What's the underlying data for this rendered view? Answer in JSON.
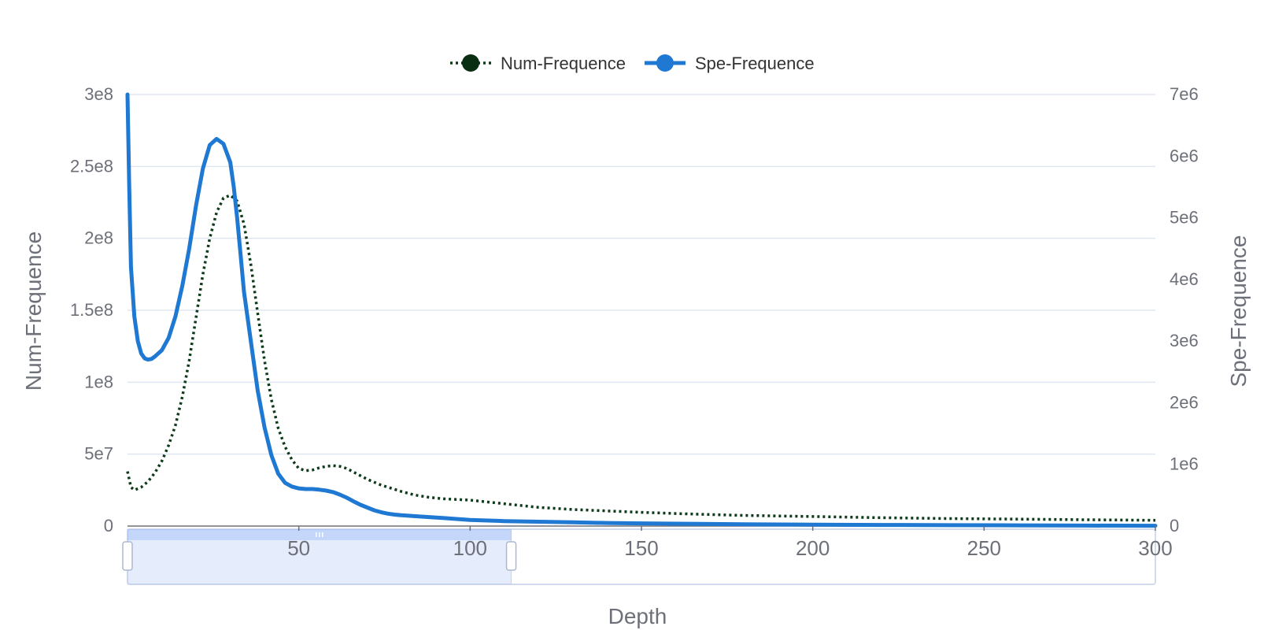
{
  "chart_data": {
    "type": "line",
    "xlabel": "Depth",
    "ylabel_left": "Num-Frequence",
    "ylabel_right": "Spe-Frequence",
    "xlim": [
      0,
      300
    ],
    "ylim_left": [
      0,
      300000000
    ],
    "ylim_right": [
      0,
      7000000
    ],
    "x_ticks": [
      "50",
      "100",
      "150",
      "200",
      "250",
      "300"
    ],
    "y_ticks_left": [
      "0",
      "5e7",
      "1e8",
      "1.5e8",
      "2e8",
      "2.5e8",
      "3e8"
    ],
    "y_ticks_right": [
      "0",
      "1e6",
      "2e6",
      "3e6",
      "4e6",
      "5e6",
      "6e6",
      "7e6"
    ],
    "legend_position": "top-center",
    "grid": true,
    "data_zoom": {
      "start_value": 0,
      "end_value": 112
    },
    "series": [
      {
        "name": "Num-Frequence",
        "axis": "left",
        "style": "dotted",
        "color": "#0d3b1a",
        "x": [
          0,
          1,
          2,
          4,
          6,
          8,
          10,
          12,
          14,
          16,
          18,
          20,
          22,
          24,
          26,
          28,
          30,
          32,
          34,
          36,
          38,
          40,
          42,
          44,
          46,
          48,
          50,
          52,
          54,
          56,
          58,
          60,
          62,
          64,
          66,
          68,
          70,
          72,
          74,
          76,
          78,
          80,
          84,
          88,
          92,
          96,
          100,
          110,
          120,
          130,
          140,
          150,
          160,
          170,
          180,
          190,
          200,
          220,
          240,
          260,
          280,
          300
        ],
        "y": [
          38000000,
          27000000,
          25000000,
          27000000,
          31000000,
          37000000,
          45000000,
          56000000,
          70000000,
          90000000,
          115000000,
          145000000,
          175000000,
          200000000,
          218000000,
          228000000,
          230000000,
          226000000,
          210000000,
          182000000,
          148000000,
          115000000,
          88000000,
          68000000,
          55000000,
          46000000,
          40000000,
          38500000,
          39000000,
          40500000,
          41500000,
          42000000,
          41500000,
          40000000,
          37500000,
          35000000,
          32500000,
          30500000,
          28500000,
          27000000,
          25500000,
          24000000,
          21500000,
          20000000,
          19000000,
          18500000,
          18000000,
          15500000,
          13000000,
          11500000,
          10500000,
          9500000,
          8700000,
          8000000,
          7400000,
          7000000,
          6600000,
          5800000,
          5200000,
          4800000,
          4400000,
          4000000
        ]
      },
      {
        "name": "Spe-Frequence",
        "axis": "right",
        "style": "solid",
        "color": "#1f78d1",
        "x": [
          0,
          0.5,
          1,
          2,
          3,
          4,
          5,
          6,
          7,
          8,
          10,
          12,
          14,
          16,
          18,
          20,
          22,
          24,
          26,
          28,
          30,
          31,
          32,
          33,
          34,
          36,
          38,
          40,
          42,
          44,
          46,
          48,
          50,
          52,
          54,
          56,
          58,
          60,
          62,
          64,
          66,
          68,
          70,
          72,
          74,
          76,
          78,
          80,
          84,
          88,
          92,
          96,
          100,
          110,
          120,
          130,
          140,
          150,
          160,
          170,
          180,
          190,
          200,
          220,
          240,
          260,
          280,
          300
        ],
        "y": [
          7000000,
          5500000,
          4200000,
          3400000,
          3000000,
          2800000,
          2720000,
          2700000,
          2710000,
          2750000,
          2850000,
          3050000,
          3400000,
          3900000,
          4500000,
          5200000,
          5800000,
          6180000,
          6280000,
          6200000,
          5900000,
          5500000,
          5000000,
          4400000,
          3800000,
          3000000,
          2200000,
          1600000,
          1150000,
          850000,
          700000,
          640000,
          610000,
          600000,
          600000,
          590000,
          575000,
          550000,
          510000,
          460000,
          400000,
          345000,
          300000,
          255000,
          225000,
          200000,
          185000,
          175000,
          160000,
          145000,
          130000,
          115000,
          100000,
          80000,
          70000,
          60000,
          50000,
          44000,
          38000,
          33000,
          29000,
          26000,
          23000,
          18000,
          14000,
          11000,
          8000,
          5000
        ]
      }
    ]
  }
}
